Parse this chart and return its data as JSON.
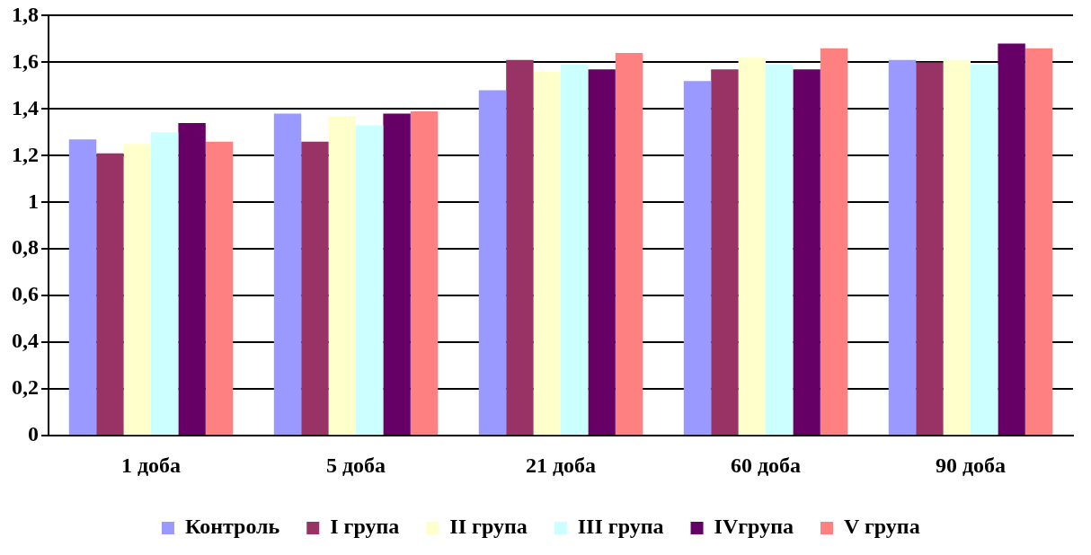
{
  "chart_data": {
    "type": "bar",
    "categories": [
      "1 доба",
      "5 доба",
      "21 доба",
      "60 доба",
      "90 доба"
    ],
    "series": [
      {
        "name": "Контроль",
        "color": "#9999ff",
        "values": [
          1.27,
          1.38,
          1.48,
          1.52,
          1.61
        ]
      },
      {
        "name": "I група",
        "color": "#993366",
        "values": [
          1.21,
          1.26,
          1.61,
          1.57,
          1.6
        ]
      },
      {
        "name": "II група",
        "color": "#ffffcc",
        "values": [
          1.25,
          1.37,
          1.56,
          1.62,
          1.61
        ]
      },
      {
        "name": "III група",
        "color": "#ccffff",
        "values": [
          1.3,
          1.33,
          1.59,
          1.59,
          1.59
        ]
      },
      {
        "name": "IVгрупа",
        "color": "#660066",
        "values": [
          1.34,
          1.38,
          1.57,
          1.57,
          1.68
        ]
      },
      {
        "name": "V група",
        "color": "#ff8080",
        "values": [
          1.26,
          1.39,
          1.64,
          1.66,
          1.66
        ]
      }
    ],
    "ylim": [
      0,
      1.8
    ],
    "yticks": [
      {
        "value": 0,
        "label": "0"
      },
      {
        "value": 0.2,
        "label": "0,2"
      },
      {
        "value": 0.4,
        "label": "0,4"
      },
      {
        "value": 0.6,
        "label": "0,6"
      },
      {
        "value": 0.8,
        "label": "0,8"
      },
      {
        "value": 1,
        "label": "1"
      },
      {
        "value": 1.2,
        "label": "1,2"
      },
      {
        "value": 1.4,
        "label": "1,4"
      },
      {
        "value": 1.6,
        "label": "1,6"
      },
      {
        "value": 1.8,
        "label": "1,8"
      }
    ],
    "grid": "y",
    "legend": "bottom"
  }
}
